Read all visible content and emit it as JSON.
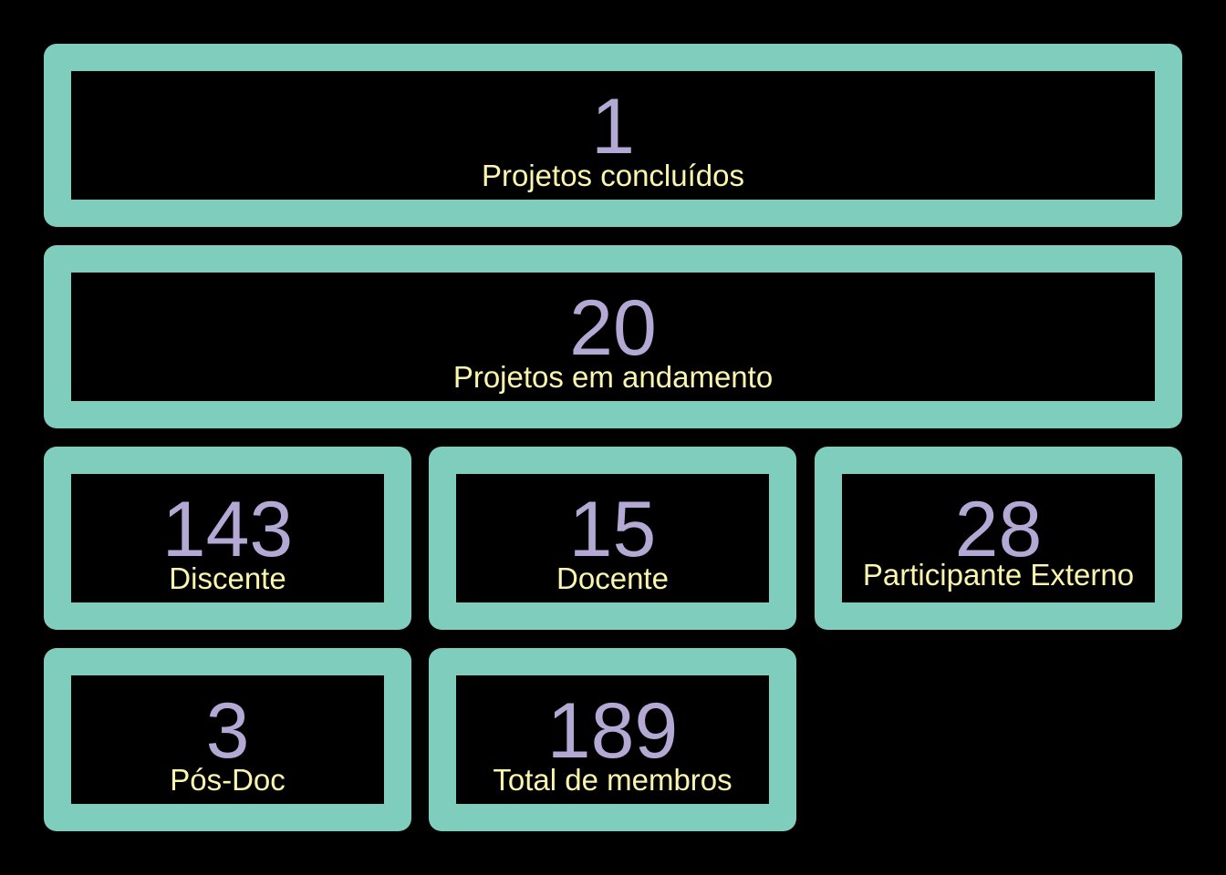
{
  "colors": {
    "background": "#000000",
    "card_border": "#7ecdbd",
    "number": "#b3a9d4",
    "label": "#fbf5ad"
  },
  "stats": [
    {
      "value": "1",
      "label": "Projetos concluídos"
    },
    {
      "value": "20",
      "label": "Projetos em andamento"
    },
    {
      "value": "143",
      "label": "Discente"
    },
    {
      "value": "15",
      "label": "Docente"
    },
    {
      "value": "28",
      "label": "Participante Externo"
    },
    {
      "value": "3",
      "label": "Pós-Doc"
    },
    {
      "value": "189",
      "label": "Total de membros"
    }
  ]
}
